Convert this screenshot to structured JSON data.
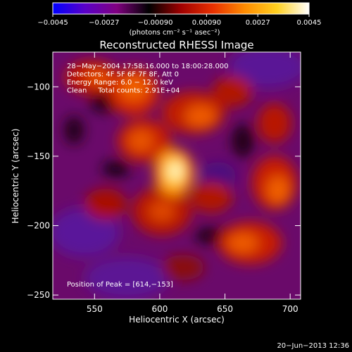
{
  "chart_data": {
    "type": "heatmap",
    "title": "Reconstructed RHESSI Image",
    "xlabel": "Heliocentric X (arcsec)",
    "ylabel": "Heliocentric Y (arcsec)",
    "xlim": [
      518,
      708
    ],
    "ylim": [
      -253,
      -75
    ],
    "xticks": [
      "550",
      "600",
      "650",
      "700"
    ],
    "xtick_values": [
      550,
      600,
      650,
      700
    ],
    "yticks": [
      "−100",
      "−150",
      "−200",
      "−250"
    ],
    "ytick_values": [
      -100,
      -150,
      -200,
      -250
    ],
    "colorbar": {
      "range": [
        -0.0045,
        0.0045
      ],
      "ticks": [
        "−0.0045",
        "−0.0027",
        "−0.00090",
        "0.00090",
        "0.0027",
        "0.0045"
      ],
      "tick_values": [
        -0.0045,
        -0.0027,
        -0.0009,
        0.0009,
        0.0027,
        0.0045
      ],
      "unit_label": "(photons cm⁻² s⁻¹ asec⁻²)",
      "colors": [
        "#0000ff",
        "#5a00c8",
        "#800080",
        "#000000",
        "#a00000",
        "#e83000",
        "#ff8c00",
        "#ffd020",
        "#ffffff"
      ]
    },
    "annotations": [
      "28−May−2004 17:58:16.000 to 18:00:28.000",
      "Detectors: 4F 5F 6F 7F 8F, Att 0",
      "Energy Range: 6.0 − 12.0 keV",
      "Clean     Total counts: 2.91E+04"
    ],
    "peak_label": "Position of Peak = [614,−153]",
    "peak": {
      "x": 614,
      "y": -153
    },
    "date_stamp": "20−Jun−2013 12:36"
  }
}
